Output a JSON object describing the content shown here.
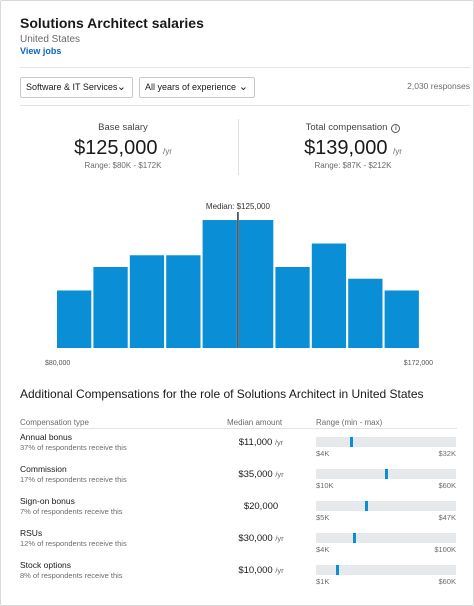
{
  "header": {
    "title": "Solutions Architect salaries",
    "location": "United States",
    "view_jobs": "View jobs"
  },
  "filters": {
    "industry": "Software & IT Services",
    "experience": "All years of experience",
    "responses": "2,030 responses",
    "chevron_icon": "chevron-down-icon"
  },
  "base_salary": {
    "label": "Base salary",
    "value": "$125,000",
    "unit": "/yr",
    "range": "Range: $80K - $172K"
  },
  "total_comp": {
    "label": "Total compensation",
    "info_icon": "info-icon",
    "value": "$139,000",
    "unit": "/yr",
    "range": "Range: $87K - $212K"
  },
  "chart_data": {
    "type": "bar",
    "categories": [
      "1",
      "2",
      "3",
      "4",
      "5",
      "6",
      "7",
      "8",
      "9",
      "10"
    ],
    "values": [
      49,
      69,
      79,
      79,
      109,
      109,
      69,
      89,
      59,
      49
    ],
    "ylim": [
      0,
      115
    ],
    "x_min_label": "$80,000",
    "x_max_label": "$172,000",
    "median_label": "Median: $125,000",
    "median_position": 0.5,
    "bar_color": "#0a8fd6",
    "grid": false
  },
  "additional": {
    "title": "Additional Compensations for the role of Solutions Architect in United States",
    "col_type": "Compensation type",
    "col_median": "Median amount",
    "col_range": "Range (min - max)",
    "unit": "/yr",
    "rows": [
      {
        "name": "Annual bonus",
        "sub": "37% of respondents receive this",
        "median": "$11,000",
        "unit": "/yr",
        "min": "$4K",
        "max": "$32K",
        "marker": 0.25
      },
      {
        "name": "Commission",
        "sub": "17% of respondents receive this",
        "median": "$35,000",
        "unit": "/yr",
        "min": "$10K",
        "max": "$60K",
        "marker": 0.5
      },
      {
        "name": "Sign-on bonus",
        "sub": "7% of respondents receive this",
        "median": "$20,000",
        "unit": "",
        "min": "$5K",
        "max": "$47K",
        "marker": 0.36
      },
      {
        "name": "RSUs",
        "sub": "12% of respondents receive this",
        "median": "$30,000",
        "unit": "/yr",
        "min": "$4K",
        "max": "$100K",
        "marker": 0.27
      },
      {
        "name": "Stock options",
        "sub": "8% of respondents receive this",
        "median": "$10,000",
        "unit": "/yr",
        "min": "$1K",
        "max": "$60K",
        "marker": 0.15
      }
    ]
  }
}
